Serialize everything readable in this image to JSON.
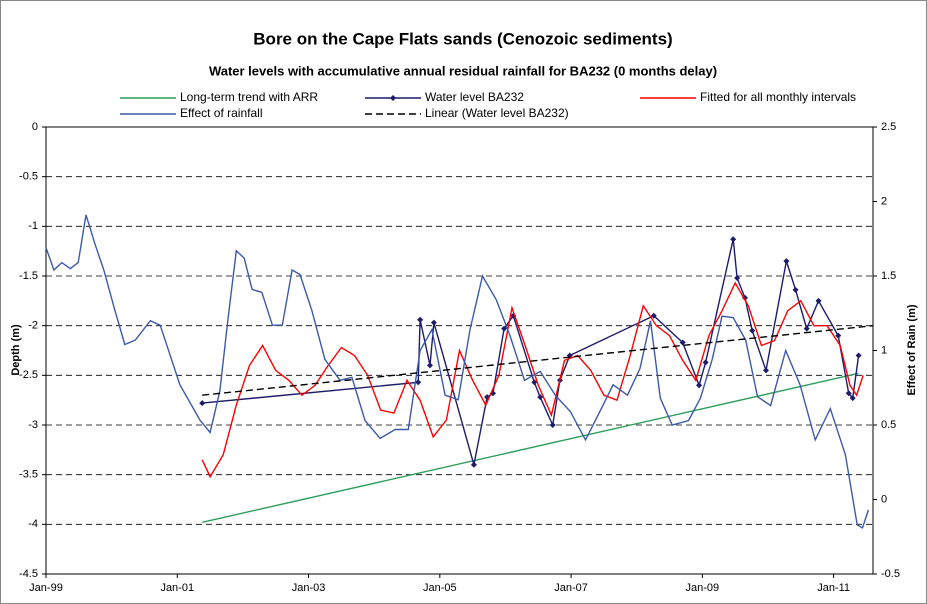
{
  "chart_data": {
    "type": "line",
    "title": "Bore on the Cape Flats sands (Cenozoic sediments)",
    "subtitle": "Water levels with accumulative annual residual rainfall for BA232 (0 months delay)",
    "y_label": "Depth (m)",
    "y2_label": "Effect of Rain (m)",
    "xlim": [
      1999,
      2011.6
    ],
    "xticks": [
      {
        "value": 1999,
        "label": "Jan-99"
      },
      {
        "value": 2001,
        "label": "Jan-01"
      },
      {
        "value": 2003,
        "label": "Jan-03"
      },
      {
        "value": 2005,
        "label": "Jan-05"
      },
      {
        "value": 2007,
        "label": "Jan-07"
      },
      {
        "value": 2009,
        "label": "Jan-09"
      },
      {
        "value": 2011,
        "label": "Jan-11"
      }
    ],
    "ylim": [
      -4.5,
      0
    ],
    "yticks": [
      0,
      -0.5,
      -1,
      -1.5,
      -2,
      -2.5,
      -3,
      -3.5,
      -4,
      -4.5
    ],
    "y2lim": [
      -0.5,
      2.5
    ],
    "y2ticks": [
      2.5,
      2,
      1.5,
      1,
      0.5,
      0,
      -0.5
    ],
    "grid": true,
    "legend": "top",
    "series": [
      {
        "name": "Long-term trend with ARR",
        "color": "#2e9e5b",
        "x": [
          2001.38,
          2011.38
        ],
        "values": [
          -3.98,
          -2.48
        ]
      },
      {
        "name": "Water level BA232",
        "color": "#1c1c6b",
        "marker": "diamond",
        "x": [
          2001.38,
          2004.67,
          2004.7,
          2004.85,
          2004.91,
          2005.52,
          2005.72,
          2005.81,
          2005.98,
          2006.12,
          2006.44,
          2006.53,
          2006.72,
          2006.83,
          2006.98,
          2008.26,
          2008.7,
          2008.95,
          2009.05,
          2009.47,
          2009.53,
          2009.65,
          2009.76,
          2009.97,
          2010.28,
          2010.42,
          2010.59,
          2010.77,
          2011.07,
          2011.23,
          2011.29,
          2011.38
        ],
        "values": [
          -2.78,
          -2.57,
          -1.94,
          -2.4,
          -1.97,
          -3.4,
          -2.72,
          -2.68,
          -2.03,
          -1.9,
          -2.57,
          -2.72,
          -3.0,
          -2.55,
          -2.3,
          -1.9,
          -2.17,
          -2.6,
          -2.37,
          -1.13,
          -1.52,
          -1.72,
          -2.05,
          -2.45,
          -1.35,
          -1.64,
          -2.03,
          -1.75,
          -2.1,
          -2.68,
          -2.73,
          -2.3
        ]
      },
      {
        "name": "Fitted for all monthly intervals",
        "color": "#ff0000",
        "x": [
          2001.38,
          2001.5,
          2001.7,
          2001.9,
          2002.1,
          2002.3,
          2002.5,
          2002.7,
          2002.9,
          2003.1,
          2003.3,
          2003.5,
          2003.7,
          2003.9,
          2004.1,
          2004.3,
          2004.5,
          2004.7,
          2004.9,
          2005.1,
          2005.3,
          2005.5,
          2005.7,
          2005.9,
          2006.1,
          2006.3,
          2006.5,
          2006.7,
          2006.9,
          2007.1,
          2007.3,
          2007.5,
          2007.7,
          2007.9,
          2008.1,
          2008.3,
          2008.5,
          2008.7,
          2008.9,
          2009.1,
          2009.3,
          2009.5,
          2009.7,
          2009.9,
          2010.1,
          2010.3,
          2010.5,
          2010.7,
          2010.9,
          2011.1,
          2011.25,
          2011.35,
          2011.45
        ],
        "values": [
          -3.35,
          -3.52,
          -3.3,
          -2.8,
          -2.4,
          -2.2,
          -2.45,
          -2.55,
          -2.7,
          -2.6,
          -2.4,
          -2.22,
          -2.3,
          -2.5,
          -2.85,
          -2.88,
          -2.55,
          -2.75,
          -3.12,
          -2.95,
          -2.25,
          -2.55,
          -2.8,
          -2.5,
          -1.82,
          -2.2,
          -2.6,
          -2.9,
          -2.35,
          -2.3,
          -2.45,
          -2.7,
          -2.75,
          -2.3,
          -1.8,
          -2.0,
          -2.1,
          -2.35,
          -2.55,
          -2.1,
          -1.85,
          -1.57,
          -1.8,
          -2.2,
          -2.15,
          -1.85,
          -1.75,
          -2.0,
          -2.0,
          -2.2,
          -2.6,
          -2.7,
          -2.5
        ]
      },
      {
        "name": "Effect of rainfall",
        "color": "#3c5aa8",
        "axis": "y2",
        "x": [
          1999.0,
          1999.12,
          1999.24,
          1999.37,
          1999.49,
          1999.61,
          1999.75,
          1999.88,
          2000.05,
          2000.2,
          2000.36,
          2000.59,
          2000.74,
          2001.04,
          2001.35,
          2001.5,
          2001.65,
          2001.77,
          2001.9,
          2002.02,
          2002.14,
          2002.29,
          2002.45,
          2002.6,
          2002.75,
          2002.87,
          2003.05,
          2003.25,
          2003.48,
          2003.66,
          2003.86,
          2004.09,
          2004.32,
          2004.52,
          2004.7,
          2004.88,
          2005.08,
          2005.28,
          2005.46,
          2005.65,
          2005.86,
          2006.07,
          2006.29,
          2006.53,
          2006.76,
          2006.99,
          2007.22,
          2007.45,
          2007.64,
          2007.86,
          2008.05,
          2008.21,
          2008.36,
          2008.54,
          2008.79,
          2008.97,
          2009.15,
          2009.3,
          2009.47,
          2009.66,
          2009.84,
          2010.04,
          2010.27,
          2010.49,
          2010.72,
          2010.95,
          2011.18,
          2011.36,
          2011.44,
          2011.53
        ],
        "values": [
          1.69,
          1.54,
          1.59,
          1.55,
          1.59,
          1.91,
          1.71,
          1.54,
          1.27,
          1.04,
          1.07,
          1.2,
          1.17,
          0.77,
          0.53,
          0.45,
          0.73,
          1.2,
          1.67,
          1.62,
          1.41,
          1.39,
          1.17,
          1.17,
          1.54,
          1.51,
          1.27,
          0.94,
          0.8,
          0.82,
          0.53,
          0.41,
          0.47,
          0.47,
          1.0,
          1.14,
          0.7,
          0.67,
          1.14,
          1.5,
          1.34,
          1.1,
          0.8,
          0.86,
          0.7,
          0.59,
          0.4,
          0.6,
          0.77,
          0.7,
          0.88,
          1.2,
          0.68,
          0.5,
          0.53,
          0.68,
          0.94,
          1.23,
          1.22,
          1.07,
          0.69,
          0.63,
          1.0,
          0.77,
          0.4,
          0.61,
          0.3,
          -0.17,
          -0.19,
          -0.07
        ]
      },
      {
        "name": "Linear (Water level BA232)",
        "color": "#000000",
        "dash": true,
        "x": [
          2001.38,
          2011.6
        ],
        "values": [
          -2.7,
          -2.0
        ]
      }
    ]
  }
}
